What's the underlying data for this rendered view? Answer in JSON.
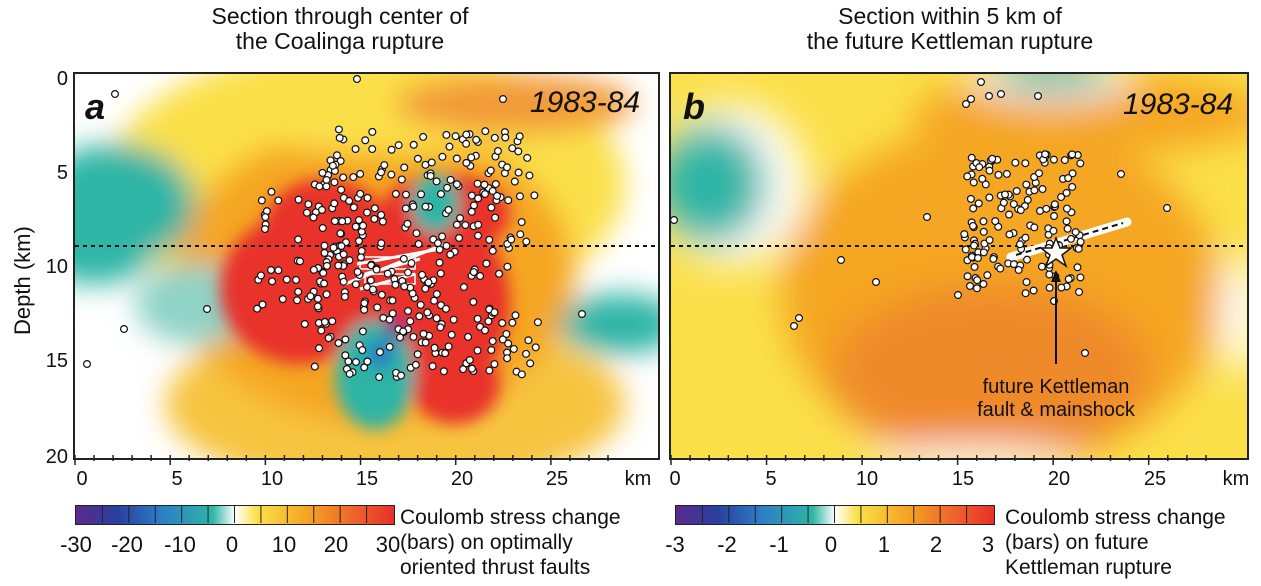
{
  "panel_a": {
    "title_line1": "Section through center of",
    "title_line2": "the Coalinga rupture",
    "label": "a",
    "year": "1983-84",
    "colorbar_ticks": [
      "-30",
      "-20",
      "-10",
      "0",
      "10",
      "20",
      "30"
    ],
    "colorbar_caption": [
      "Coulomb stress change",
      "(bars) on optimally",
      "oriented thrust faults"
    ]
  },
  "panel_b": {
    "title_line1": "Section within 5 km of",
    "title_line2": "the future Kettleman rupture",
    "label": "b",
    "year": "1983-84",
    "annotation": [
      "future Kettleman",
      "fault & mainshock"
    ],
    "colorbar_ticks": [
      "-3",
      "-2",
      "-1",
      "0",
      "1",
      "2",
      "3"
    ],
    "colorbar_caption": [
      "Coulomb stress change",
      "(bars) on future",
      "Kettleman rupture"
    ]
  },
  "y_axis": {
    "label": "Depth (km)",
    "ticks": [
      "0",
      "5",
      "10",
      "15",
      "20"
    ]
  },
  "x_axis": {
    "ticks": [
      "0",
      "5",
      "10",
      "15",
      "20",
      "25"
    ],
    "unit": "km"
  },
  "colors": {
    "strong_positive": "#e8302a",
    "positive": "#f5a623",
    "weak_positive": "#fbe04a",
    "neutral": "#ffffff",
    "negative": "#2fb5a6",
    "strong_negative": "#6a2c91"
  }
}
